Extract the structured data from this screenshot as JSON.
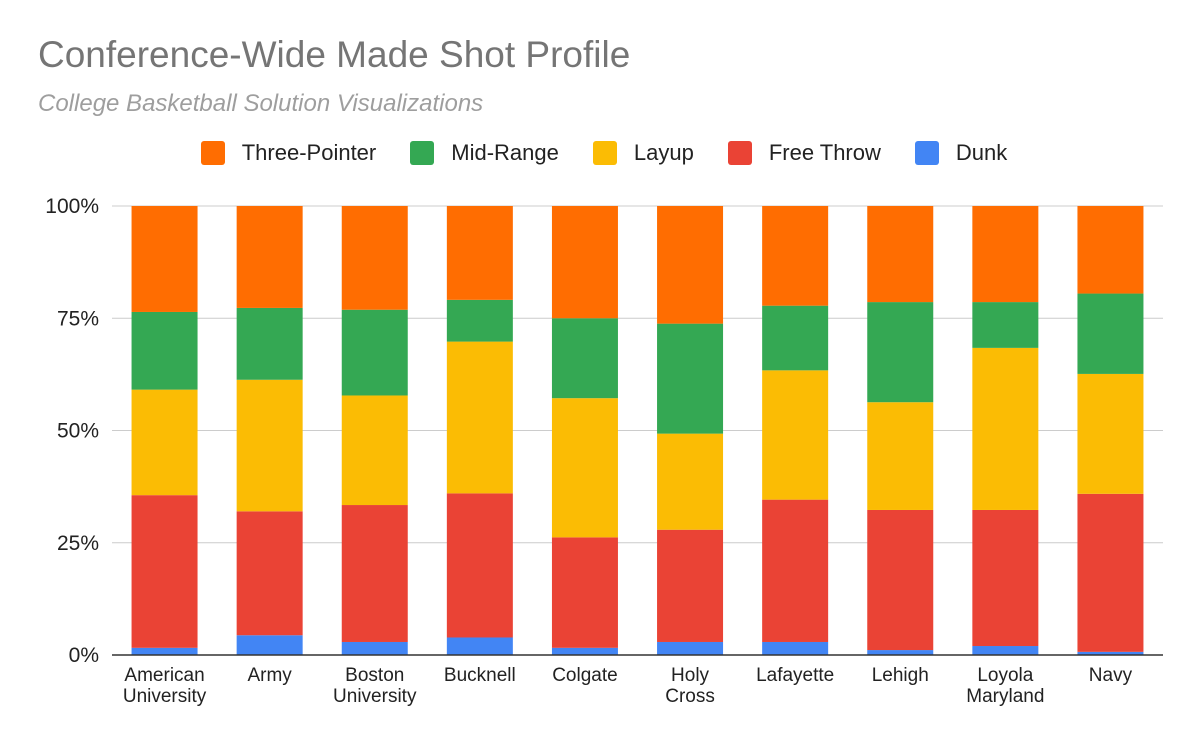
{
  "chart_data": {
    "type": "bar",
    "stacked": "percent",
    "title": "Conference-Wide Made Shot Profile",
    "subtitle": "College Basketball Solution Visualizations",
    "legend_position": "top",
    "grid": true,
    "ylim": [
      0,
      100
    ],
    "y_ticks": [
      "0%",
      "25%",
      "50%",
      "75%",
      "100%"
    ],
    "categories": [
      [
        "American",
        "University"
      ],
      [
        "Army"
      ],
      [
        "Boston",
        "University"
      ],
      [
        "Bucknell"
      ],
      [
        "Colgate"
      ],
      [
        "Holy",
        "Cross"
      ],
      [
        "Lafayette"
      ],
      [
        "Lehigh"
      ],
      [
        "Loyola",
        "Maryland"
      ],
      [
        "Navy"
      ]
    ],
    "series": [
      {
        "name": "Dunk",
        "color": "#4285f4",
        "values": [
          1.6,
          4.4,
          2.9,
          3.9,
          1.6,
          2.9,
          2.9,
          1.1,
          2.0,
          0.7
        ]
      },
      {
        "name": "Free Throw",
        "color": "#ea4335",
        "values": [
          34.0,
          27.6,
          30.5,
          32.1,
          24.6,
          25.0,
          31.7,
          31.2,
          30.3,
          35.2
        ]
      },
      {
        "name": "Layup",
        "color": "#fbbc04",
        "values": [
          23.5,
          29.3,
          24.4,
          33.8,
          31.0,
          21.4,
          28.8,
          24.0,
          36.1,
          26.7
        ]
      },
      {
        "name": "Mid-Range",
        "color": "#34a853",
        "values": [
          17.3,
          16.0,
          19.1,
          9.3,
          17.8,
          24.5,
          14.4,
          22.3,
          10.2,
          17.9
        ]
      },
      {
        "name": "Three-Pointer",
        "color": "#ff6d01",
        "values": [
          23.6,
          22.7,
          23.1,
          20.9,
          25.0,
          26.2,
          22.2,
          21.4,
          21.4,
          19.5
        ]
      }
    ],
    "legend_order": [
      "Three-Pointer",
      "Mid-Range",
      "Layup",
      "Free Throw",
      "Dunk"
    ]
  }
}
